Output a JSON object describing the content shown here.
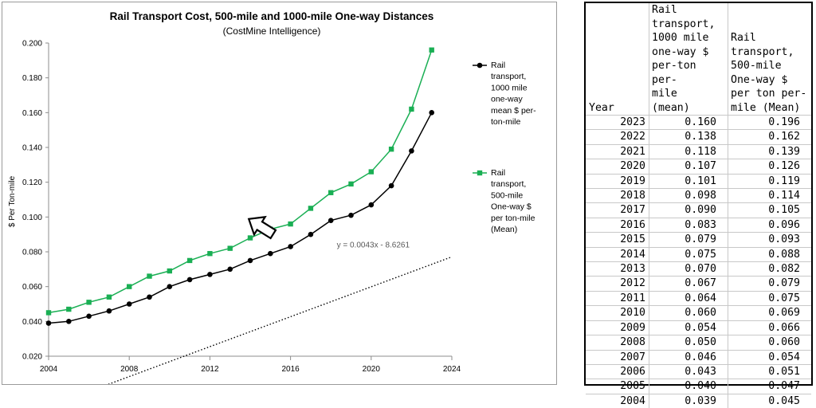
{
  "chart_data": {
    "type": "line",
    "title": "Rail Transport Cost, 500-mile and 1000-mile One-way Distances",
    "subtitle": "(CostMine Intelligence)",
    "ylabel": "$ Per Ton-mile",
    "xlabel": "",
    "xlim": [
      2004,
      2024
    ],
    "ylim": [
      0.02,
      0.2
    ],
    "x_ticks": [
      "2004",
      "2008",
      "2012",
      "2016",
      "2020",
      "2024"
    ],
    "y_ticks": [
      "0.020",
      "0.040",
      "0.060",
      "0.080",
      "0.100",
      "0.120",
      "0.140",
      "0.160",
      "0.180",
      "0.200"
    ],
    "x": [
      2004,
      2005,
      2006,
      2007,
      2008,
      2009,
      2010,
      2011,
      2012,
      2013,
      2014,
      2015,
      2016,
      2017,
      2018,
      2019,
      2020,
      2021,
      2022,
      2023
    ],
    "series": [
      {
        "name": "Rail transport, 1000 mile one-way mean $ per-ton-mile",
        "legend_lines": [
          "Rail",
          "transport,",
          "1000 mile",
          "one-way",
          "mean $ per-",
          "ton-mile"
        ],
        "color": "#000000",
        "marker": "circle",
        "values": [
          0.039,
          0.04,
          0.043,
          0.046,
          0.05,
          0.054,
          0.06,
          0.064,
          0.067,
          0.07,
          0.075,
          0.079,
          0.083,
          0.09,
          0.098,
          0.101,
          0.107,
          0.118,
          0.138,
          0.16
        ]
      },
      {
        "name": "Rail transport, 500-mile One-way $ per ton-mile (Mean)",
        "legend_lines": [
          "Rail",
          "transport,",
          "500-mile",
          "One-way $",
          "per ton-mile",
          "(Mean)"
        ],
        "color": "#1aaf54",
        "marker": "square",
        "values": [
          0.045,
          0.047,
          0.051,
          0.054,
          0.06,
          0.066,
          0.069,
          0.075,
          0.079,
          0.082,
          0.088,
          0.093,
          0.096,
          0.105,
          0.114,
          0.119,
          0.126,
          0.139,
          0.162,
          0.196
        ]
      }
    ],
    "trendline": {
      "label": "y = 0.0043x - 8.6261",
      "slope": 0.0043,
      "intercept": -8.6261,
      "x_range": [
        2004,
        2024
      ],
      "style": "dotted"
    },
    "annotations": [
      "outline arrow pointing up-left"
    ],
    "legend_position": "right"
  },
  "table": {
    "headers": {
      "year": "Year",
      "col1": [
        "Rail",
        "transport,",
        "1000 mile",
        "one-way $",
        "per-ton per-",
        "mile",
        "(mean)"
      ],
      "col2": [
        "Rail",
        "transport,",
        "500-mile",
        "One-way $",
        "per ton per-",
        "mile (Mean)"
      ]
    },
    "rows": [
      {
        "year": "2023",
        "v1": "0.160",
        "v2": "0.196"
      },
      {
        "year": "2022",
        "v1": "0.138",
        "v2": "0.162"
      },
      {
        "year": "2021",
        "v1": "0.118",
        "v2": "0.139"
      },
      {
        "year": "2020",
        "v1": "0.107",
        "v2": "0.126"
      },
      {
        "year": "2019",
        "v1": "0.101",
        "v2": "0.119"
      },
      {
        "year": "2018",
        "v1": "0.098",
        "v2": "0.114"
      },
      {
        "year": "2017",
        "v1": "0.090",
        "v2": "0.105"
      },
      {
        "year": "2016",
        "v1": "0.083",
        "v2": "0.096"
      },
      {
        "year": "2015",
        "v1": "0.079",
        "v2": "0.093"
      },
      {
        "year": "2014",
        "v1": "0.075",
        "v2": "0.088"
      },
      {
        "year": "2013",
        "v1": "0.070",
        "v2": "0.082"
      },
      {
        "year": "2012",
        "v1": "0.067",
        "v2": "0.079"
      },
      {
        "year": "2011",
        "v1": "0.064",
        "v2": "0.075"
      },
      {
        "year": "2010",
        "v1": "0.060",
        "v2": "0.069"
      },
      {
        "year": "2009",
        "v1": "0.054",
        "v2": "0.066"
      },
      {
        "year": "2008",
        "v1": "0.050",
        "v2": "0.060"
      },
      {
        "year": "2007",
        "v1": "0.046",
        "v2": "0.054"
      },
      {
        "year": "2006",
        "v1": "0.043",
        "v2": "0.051"
      },
      {
        "year": "2005",
        "v1": "0.040",
        "v2": "0.047"
      },
      {
        "year": "2004",
        "v1": "0.039",
        "v2": "0.045"
      }
    ]
  }
}
